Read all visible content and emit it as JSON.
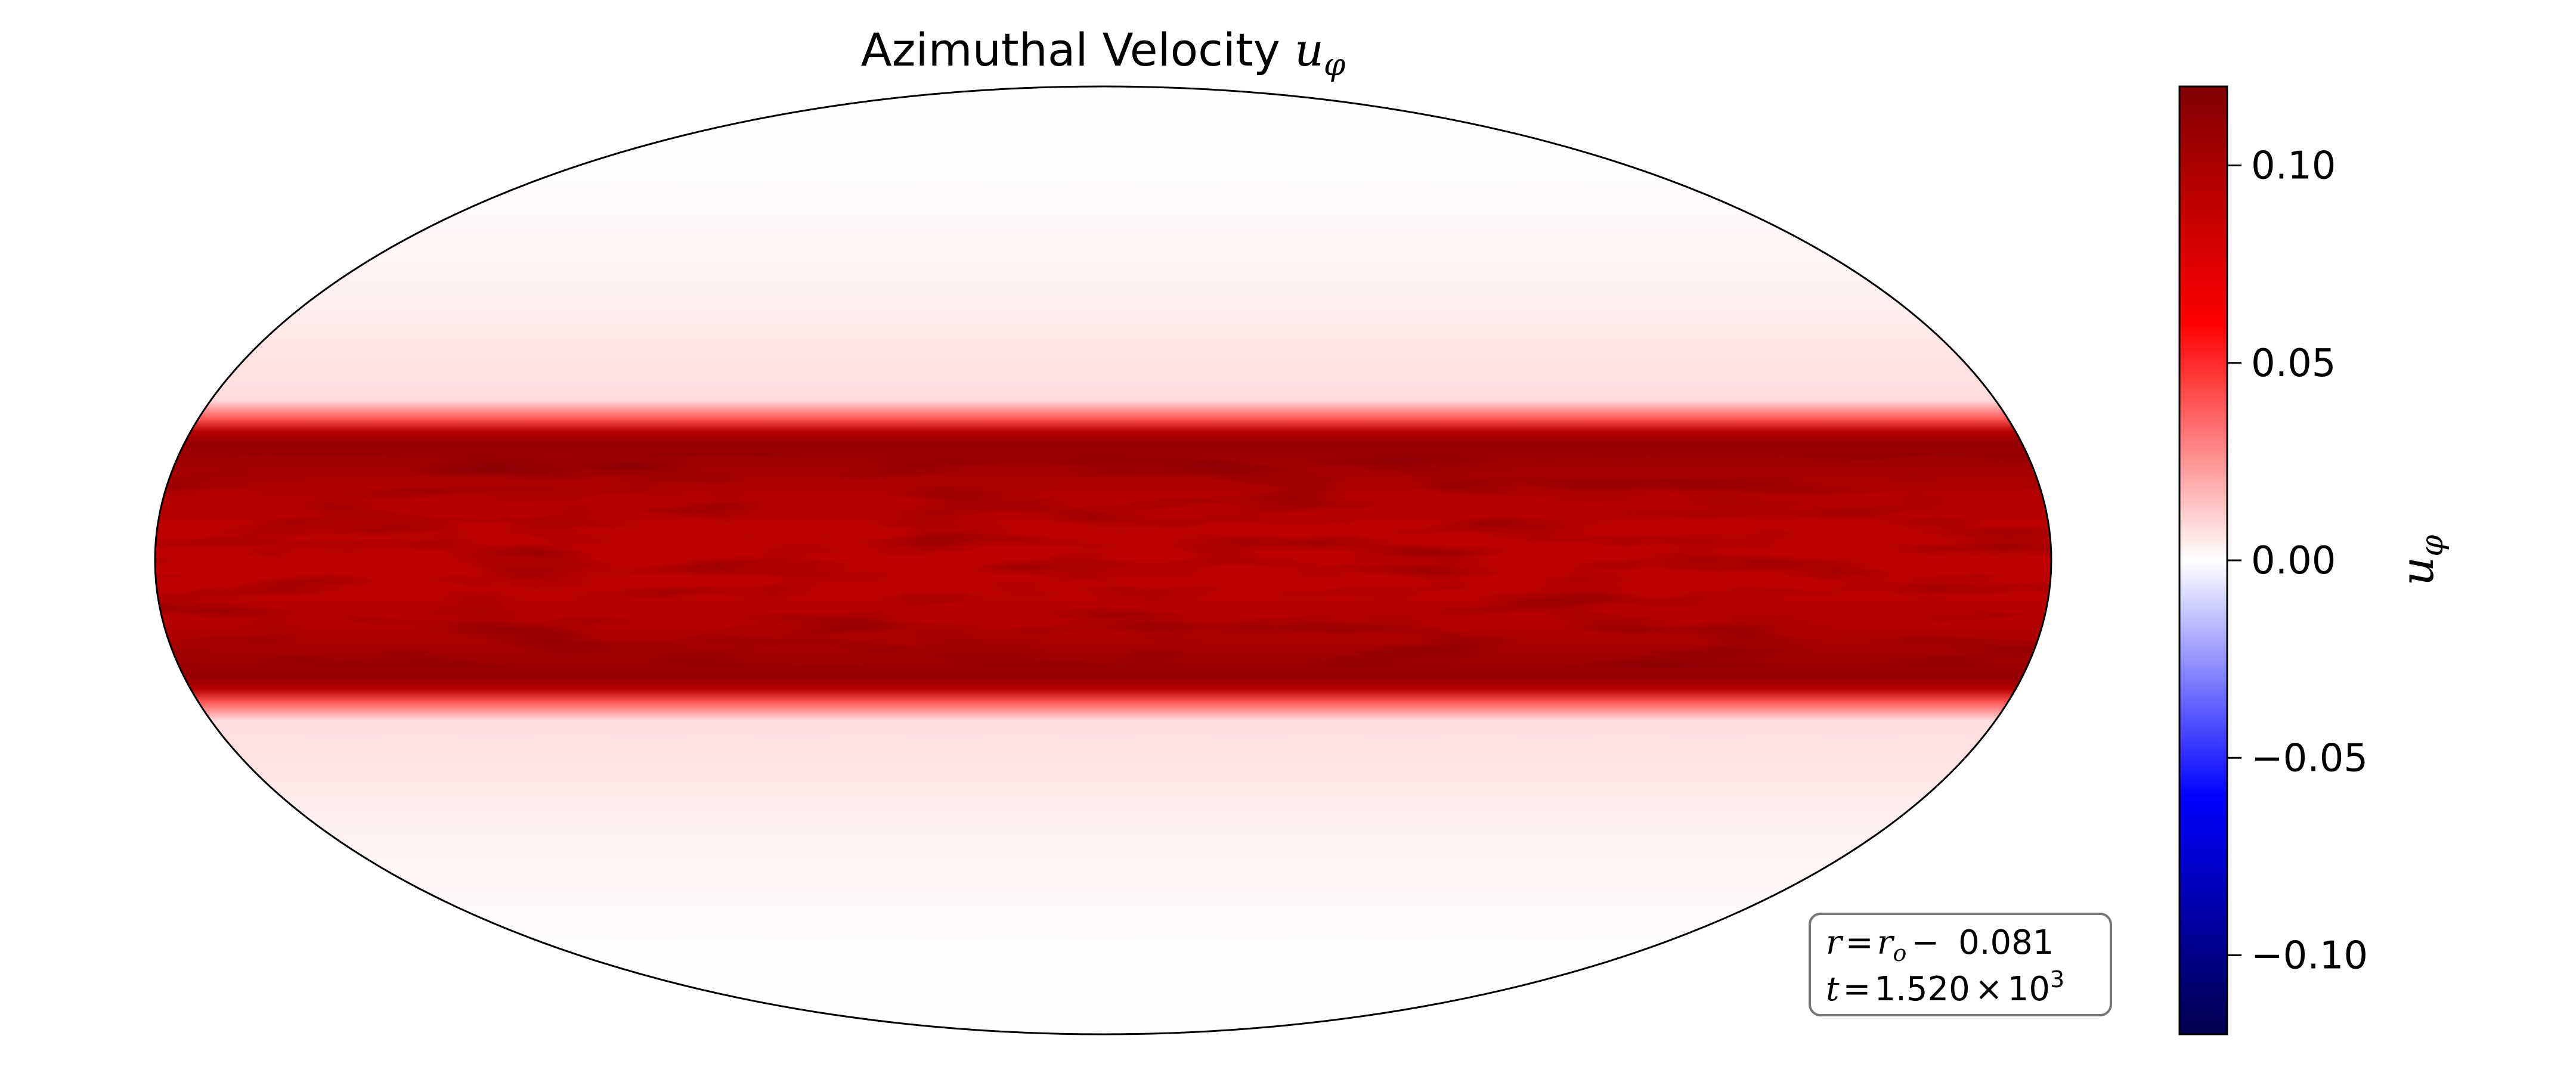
{
  "chart_data": {
    "type": "heatmap",
    "projection": "mollweide",
    "title_text": "Azimuthal Velocity ",
    "title_symbol": "u",
    "title_sub": "φ",
    "colorbar": {
      "label": "u",
      "label_sub": "φ",
      "vmin": -0.12,
      "vmax": 0.12,
      "ticks": [
        0.1,
        0.05,
        0.0,
        -0.05,
        -0.1
      ],
      "tick_labels": [
        "0.10",
        "0.05",
        "0.00",
        "−0.05",
        "−0.10"
      ],
      "colormap": "seismic"
    },
    "latitude_profile": {
      "latitude": [
        90,
        60,
        40,
        30,
        25,
        22,
        20,
        18,
        10,
        0,
        -10,
        -18,
        -20,
        -22,
        -25,
        -30,
        -40,
        -60,
        -90
      ],
      "u_phi": [
        0.0,
        0.001,
        0.004,
        0.007,
        0.008,
        0.04,
        0.095,
        0.11,
        0.095,
        0.09,
        0.095,
        0.11,
        0.095,
        0.04,
        0.008,
        0.007,
        0.004,
        0.001,
        0.0
      ]
    },
    "annotation": {
      "r_lhs": "r",
      "r_rhs": "r",
      "r_sub": "o",
      "r_value": "0.081",
      "t_lhs": "t",
      "t_mantissa": "1.520",
      "t_base": "10",
      "t_exp": "3"
    },
    "colors": {
      "frame": "#000000",
      "annotation_border": "#777777"
    }
  }
}
